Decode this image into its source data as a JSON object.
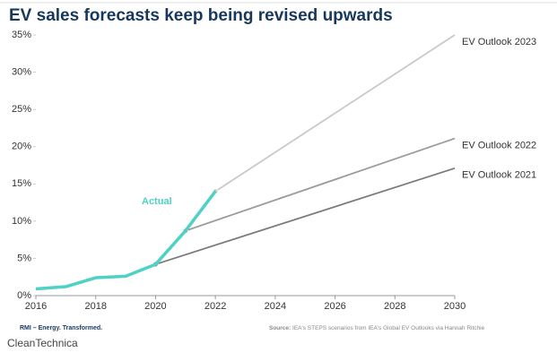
{
  "chart_data": {
    "type": "line",
    "title": "EV sales forecasts keep being revised upwards",
    "series": [
      {
        "name": "Actual",
        "color": "#4fd1c5",
        "x": [
          2016,
          2017,
          2018,
          2019,
          2020,
          2021,
          2022
        ],
        "values": [
          0.9,
          1.2,
          2.4,
          2.6,
          4.2,
          8.7,
          14.0
        ]
      },
      {
        "name": "EV Outlook 2023",
        "color": "#c9c9c9",
        "x": [
          2022,
          2030
        ],
        "values": [
          14.0,
          35.0
        ]
      },
      {
        "name": "EV Outlook 2022",
        "color": "#9b9b9b",
        "x": [
          2021,
          2030
        ],
        "values": [
          8.7,
          21.1
        ]
      },
      {
        "name": "EV Outlook 2021",
        "color": "#7b7b7b",
        "x": [
          2020,
          2030
        ],
        "values": [
          4.2,
          17.1
        ]
      }
    ],
    "xlim": [
      2016,
      2030
    ],
    "xticks": [
      2016,
      2018,
      2020,
      2022,
      2024,
      2026,
      2028,
      2030
    ],
    "ylim": [
      0,
      35
    ],
    "yticks": [
      {
        "value": 0,
        "label": "0%"
      },
      {
        "value": 5,
        "label": "5%"
      },
      {
        "value": 10,
        "label": "10%"
      },
      {
        "value": 15,
        "label": "15%"
      },
      {
        "value": 20,
        "label": "20%"
      },
      {
        "value": 25,
        "label": "25%"
      },
      {
        "value": 30,
        "label": "30%"
      },
      {
        "value": 35,
        "label": "35%"
      }
    ],
    "grid": false,
    "credit": "RMI – Energy. Transformed.",
    "source_label": "Source:",
    "source": "IEA's STEPS scenarios from IEA's Global EV Outlooks via Hannah Ritchie",
    "publisher": "CleanTechnica"
  }
}
